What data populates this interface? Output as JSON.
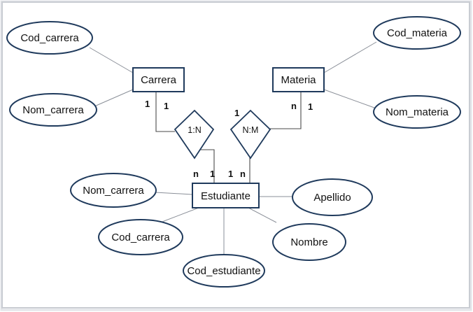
{
  "diagram": {
    "entities": {
      "carrera": "Carrera",
      "materia": "Materia",
      "estudiante": "Estudiante"
    },
    "relationships": {
      "carrera_estudiante": "1:N",
      "materia_estudiante": "N:M"
    },
    "attributes": {
      "carrera_cod": "Cod_carrera",
      "carrera_nom": "Nom_carrera",
      "materia_cod": "Cod_materia",
      "materia_nom": "Nom_materia",
      "estudiante_nom_carrera": "Nom_carrera",
      "estudiante_cod_carrera": "Cod_carrera",
      "estudiante_cod": "Cod_estudiante",
      "estudiante_nombre": "Nombre",
      "estudiante_apellido": "Apellido"
    },
    "cardinalities": {
      "carrera_left": "1",
      "carrera_right": "1",
      "materia_left": "n",
      "materia_right": "1",
      "rel_nm_top": "1",
      "estudiante_1": "n",
      "estudiante_2": "1",
      "estudiante_3": "1",
      "estudiante_4": "n"
    }
  }
}
